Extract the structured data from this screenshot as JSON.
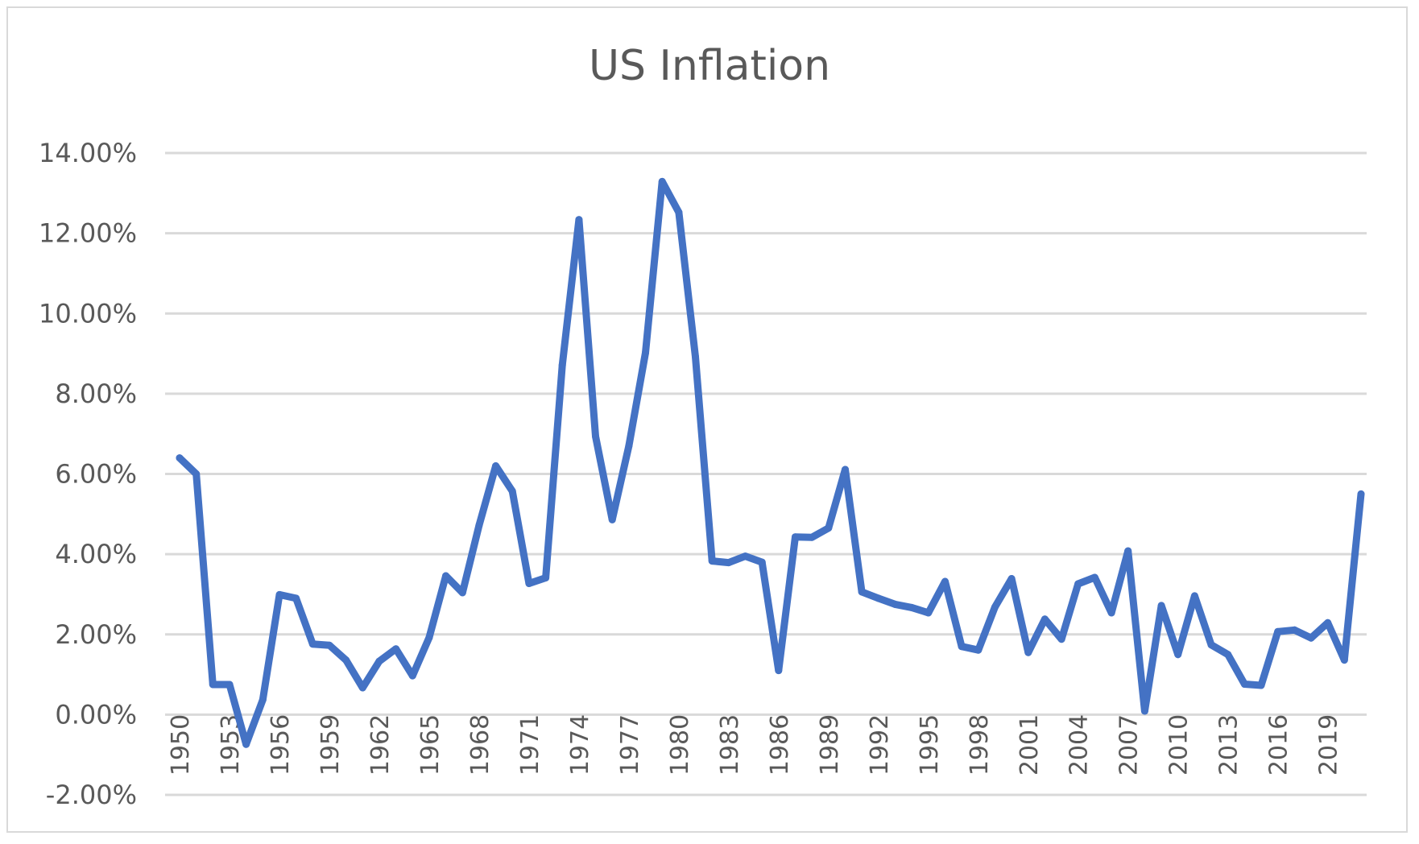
{
  "chart_data": {
    "type": "line",
    "title": "US Inflation",
    "xlabel": "",
    "ylabel": "",
    "ylim": [
      -2,
      14
    ],
    "y_ticks": [
      "-2.00%",
      "0.00%",
      "2.00%",
      "4.00%",
      "6.00%",
      "8.00%",
      "10.00%",
      "12.00%",
      "14.00%"
    ],
    "y_tick_values": [
      -2,
      0,
      2,
      4,
      6,
      8,
      10,
      12,
      14
    ],
    "x_tick_labels": [
      "1950",
      "1953",
      "1956",
      "1959",
      "1962",
      "1965",
      "1968",
      "1971",
      "1974",
      "1977",
      "1980",
      "1983",
      "1986",
      "1989",
      "1992",
      "1995",
      "1998",
      "2001",
      "2004",
      "2007",
      "2010",
      "2013",
      "2016",
      "2019"
    ],
    "grid": true,
    "legend": "none",
    "line_color": "#4472c4",
    "x": [
      1950,
      1951,
      1952,
      1953,
      1954,
      1955,
      1956,
      1957,
      1958,
      1959,
      1960,
      1961,
      1962,
      1963,
      1964,
      1965,
      1966,
      1967,
      1968,
      1969,
      1970,
      1971,
      1972,
      1973,
      1974,
      1975,
      1976,
      1977,
      1978,
      1979,
      1980,
      1981,
      1982,
      1983,
      1984,
      1985,
      1986,
      1987,
      1988,
      1989,
      1990,
      1991,
      1992,
      1993,
      1994,
      1995,
      1996,
      1997,
      1998,
      1999,
      2000,
      2001,
      2002,
      2003,
      2004,
      2005,
      2006,
      2007,
      2008,
      2009,
      2010,
      2011,
      2012,
      2013,
      2014,
      2015,
      2016,
      2017,
      2018,
      2019,
      2020,
      2021
    ],
    "series": [
      {
        "values": [
          6.4,
          6.0,
          0.75,
          0.75,
          -0.74,
          0.37,
          2.99,
          2.9,
          1.76,
          1.73,
          1.36,
          0.67,
          1.33,
          1.64,
          0.97,
          1.92,
          3.46,
          3.04,
          4.72,
          6.2,
          5.57,
          3.27,
          3.41,
          8.71,
          12.34,
          6.94,
          4.86,
          6.7,
          9.02,
          13.29,
          12.52,
          8.92,
          3.83,
          3.79,
          3.95,
          3.8,
          1.1,
          4.43,
          4.42,
          4.65,
          6.11,
          3.06,
          2.9,
          2.75,
          2.67,
          2.54,
          3.32,
          1.7,
          1.61,
          2.68,
          3.39,
          1.55,
          2.38,
          1.88,
          3.26,
          3.42,
          2.54,
          4.08,
          0.09,
          2.72,
          1.5,
          2.96,
          1.74,
          1.5,
          0.76,
          0.73,
          2.07,
          2.11,
          1.91,
          2.29,
          1.36,
          5.5
        ]
      }
    ]
  }
}
